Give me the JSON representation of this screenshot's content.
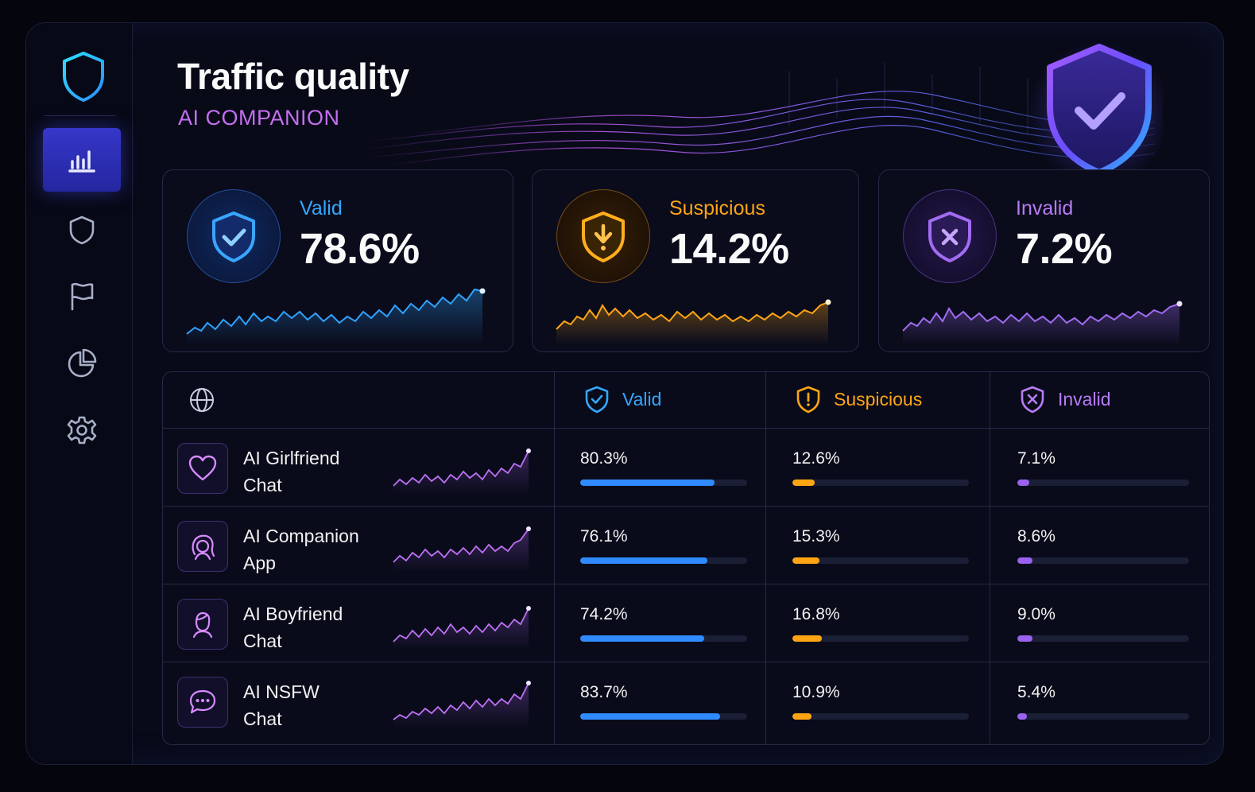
{
  "header": {
    "title": "Traffic quality",
    "subtitle": "AI COMPANION"
  },
  "colors": {
    "valid": "#2fa3ff",
    "suspicious": "#ffa514",
    "invalid": "#a26cf2",
    "accent": "#3537c9"
  },
  "sidebar": {
    "items": [
      {
        "icon": "bar-chart-icon",
        "active": true
      },
      {
        "icon": "shield-icon",
        "active": false
      },
      {
        "icon": "flag-icon",
        "active": false
      },
      {
        "icon": "pie-chart-icon",
        "active": false
      },
      {
        "icon": "gear-icon",
        "active": false
      }
    ]
  },
  "cards": {
    "valid": {
      "label": "Valid",
      "value": "78.6%",
      "icon": "shield-check-icon"
    },
    "suspicious": {
      "label": "Suspicious",
      "value": "14.2%",
      "icon": "shield-alert-icon"
    },
    "invalid": {
      "label": "Invalid",
      "value": "7.2%",
      "icon": "shield-x-icon"
    }
  },
  "table": {
    "header_icon": "globe-icon",
    "columns": {
      "valid": "Valid",
      "suspicious": "Suspicious",
      "invalid": "Invalid"
    },
    "rows": [
      {
        "icon": "heart-icon",
        "name_line1": "AI Girlfriend",
        "name_line2": "Chat",
        "valid": "80.3%",
        "suspicious": "12.6%",
        "invalid": "7.1%",
        "valid_pct": 80.3,
        "suspicious_pct": 12.6,
        "invalid_pct": 7.1
      },
      {
        "icon": "woman-icon",
        "name_line1": "AI Companion",
        "name_line2": "App",
        "valid": "76.1%",
        "suspicious": "15.3%",
        "invalid": "8.6%",
        "valid_pct": 76.1,
        "suspicious_pct": 15.3,
        "invalid_pct": 8.6
      },
      {
        "icon": "man-icon",
        "name_line1": "AI Boyfriend",
        "name_line2": "Chat",
        "valid": "74.2%",
        "suspicious": "16.8%",
        "invalid": "9.0%",
        "valid_pct": 74.2,
        "suspicious_pct": 16.8,
        "invalid_pct": 9.0
      },
      {
        "icon": "chat-bubble-icon",
        "name_line1": "AI NSFW",
        "name_line2": "Chat",
        "valid": "83.7%",
        "suspicious": "10.9%",
        "invalid": "5.4%",
        "valid_pct": 83.7,
        "suspicious_pct": 10.9,
        "invalid_pct": 5.4
      }
    ]
  }
}
